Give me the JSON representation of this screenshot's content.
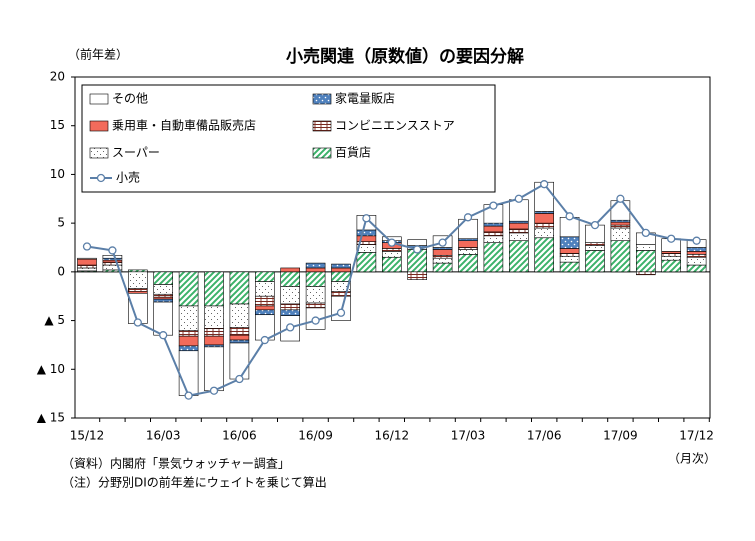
{
  "chart_data": {
    "type": "bar",
    "stacked": true,
    "title": "小売関連（原数値）の要因分解",
    "y_label": "（前年差）",
    "x_label": "（月次）",
    "notes": [
      "（資料）内閣府「景気ウォッチャー調査」",
      "（注）分野別DIの前年差にウェイトを乗じて算出"
    ],
    "categories": [
      "15/12",
      null,
      null,
      "16/03",
      null,
      null,
      "16/06",
      null,
      null,
      "16/09",
      null,
      null,
      "16/12",
      null,
      null,
      "17/03",
      null,
      null,
      "17/06",
      null,
      null,
      "17/09",
      null,
      null,
      "17/12"
    ],
    "ylim": [
      -15,
      20
    ],
    "yticks": [
      20,
      15,
      10,
      5,
      0,
      {
        "value": -5,
        "label": "▲ 5"
      },
      {
        "value": -10,
        "label": "▲ 10"
      },
      {
        "value": -15,
        "label": "▲ 15"
      }
    ],
    "grid": false,
    "legend": "top-left",
    "series": [
      {
        "name": "その他",
        "color": "#ffffff",
        "values": [
          0.1,
          0.3,
          -3.1,
          -3.4,
          -4.6,
          -4.5,
          -3.7,
          -2.6,
          -2.6,
          -2.2,
          -2.5,
          1.5,
          0.4,
          0.6,
          1.2,
          2.0,
          1.9,
          2.2,
          3.0,
          2.0,
          1.8,
          2.0,
          1.2,
          1.3,
          0.8
        ]
      },
      {
        "name": "家電量販店",
        "color": "#4f81bd",
        "values": [
          0,
          0.2,
          0,
          -0.3,
          -0.5,
          -0.2,
          -0.3,
          -0.5,
          -0.6,
          0.5,
          0.4,
          0.6,
          0.2,
          0.2,
          0.2,
          0.2,
          0.3,
          0.2,
          0.2,
          1.2,
          0,
          0.2,
          0,
          0,
          0.4
        ]
      },
      {
        "name": "乗用車・自動車備品販売店",
        "color": "#f26b5b",
        "values": [
          0.6,
          0.2,
          -0.2,
          -0.2,
          -1.0,
          -0.9,
          -0.5,
          -0.4,
          0.4,
          0.4,
          0.4,
          0.6,
          0.6,
          0,
          0.6,
          0.7,
          0.6,
          0.6,
          1.0,
          0.5,
          0,
          0.3,
          0,
          0.2,
          0.3
        ]
      },
      {
        "name": "コンビニエンスストア",
        "color": "#7a2a20",
        "values": [
          0.3,
          0.3,
          -0.3,
          -0.3,
          -0.6,
          -0.8,
          -0.8,
          -1.0,
          -0.6,
          -0.5,
          -0.5,
          0.3,
          0.3,
          -0.8,
          0.3,
          0.2,
          0.4,
          0.4,
          0.5,
          0.3,
          0.3,
          0.3,
          -0.3,
          0.3,
          0.3
        ]
      },
      {
        "name": "スーパー",
        "color": "#333333",
        "values": [
          0.3,
          0.5,
          -1.7,
          -1.0,
          -2.5,
          -2.3,
          -2.4,
          -1.5,
          -1.8,
          -1.7,
          -1.0,
          0.8,
          0.6,
          0.2,
          0.5,
          0.5,
          0.7,
          0.8,
          1.0,
          0.6,
          0.5,
          1.3,
          0.6,
          0.4,
          0.8
        ]
      },
      {
        "name": "百貨店",
        "color": "#3cb26a",
        "values": [
          0.1,
          0.2,
          0.2,
          -1.3,
          -3.5,
          -3.5,
          -3.3,
          -1.0,
          -1.5,
          -1.5,
          -1.0,
          2.0,
          1.5,
          2.3,
          0.9,
          1.8,
          3.0,
          3.2,
          3.5,
          1.0,
          2.2,
          3.2,
          2.2,
          1.2,
          0.7
        ]
      },
      {
        "name": "小売",
        "type": "line",
        "color": "#5b7fa8",
        "values": [
          2.6,
          2.2,
          -5.2,
          -6.5,
          -12.7,
          -12.2,
          -11.0,
          -7.0,
          -5.7,
          -5.0,
          -4.2,
          5.5,
          3.0,
          2.3,
          3.0,
          5.6,
          6.8,
          7.5,
          9.0,
          5.7,
          4.8,
          7.5,
          4.0,
          3.4,
          3.2
        ]
      }
    ]
  }
}
